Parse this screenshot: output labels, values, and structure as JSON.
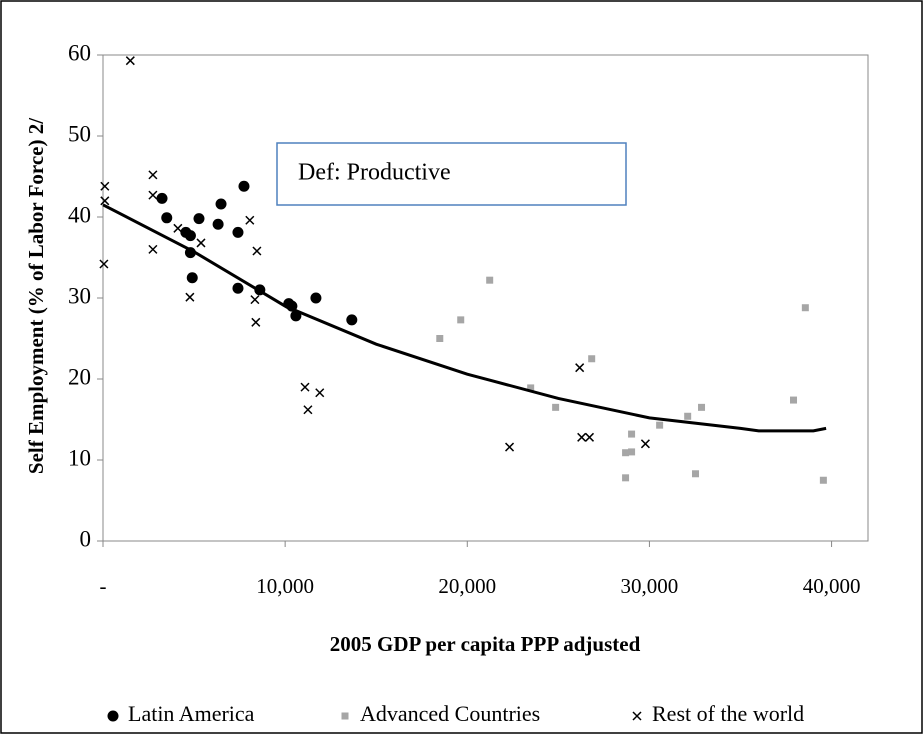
{
  "chart_data": {
    "type": "scatter",
    "xlabel": "2005 GDP per capita PPP adjusted",
    "ylabel": "Self Employment (% of Labor Force) 2/",
    "annotation": "Def: Productive",
    "xlim": [
      0,
      42000
    ],
    "xticks": [
      {
        "value": 0,
        "label": "-"
      },
      {
        "value": 10000,
        "label": "10,000"
      },
      {
        "value": 20000,
        "label": "20,000"
      },
      {
        "value": 30000,
        "label": "30,000"
      },
      {
        "value": 40000,
        "label": "40,000"
      }
    ],
    "ylim": [
      0,
      60
    ],
    "yticks": [
      0,
      10,
      20,
      30,
      40,
      50,
      60
    ],
    "legend": "bottom",
    "series": [
      {
        "name": "Latin America",
        "color": "#000000",
        "marker": "circle",
        "x": [
          3240,
          3500,
          4550,
          4800,
          4800,
          4900,
          5270,
          6320,
          6480,
          7410,
          7410,
          7740,
          8610,
          10200,
          10370,
          10590,
          11690,
          13660
        ],
        "values": [
          42.3,
          39.9,
          38.1,
          37.7,
          35.6,
          32.5,
          39.8,
          39.1,
          41.6,
          38.1,
          31.2,
          43.8,
          31.0,
          29.3,
          29.0,
          27.8,
          30.0,
          27.3
        ]
      },
      {
        "name": "Advanced Countries",
        "color": "#a6a6a6",
        "marker": "square",
        "x": [
          18490,
          19640,
          21230,
          23480,
          24850,
          26830,
          28690,
          28690,
          29020,
          29020,
          30560,
          32100,
          32530,
          32860,
          37910,
          38560,
          39550
        ],
        "values": [
          25.0,
          27.3,
          32.2,
          18.9,
          16.5,
          22.5,
          10.9,
          7.8,
          11.0,
          13.2,
          14.3,
          15.4,
          8.3,
          16.5,
          17.4,
          28.8,
          7.5
        ]
      },
      {
        "name": "Rest of the world",
        "color": "#000000",
        "marker": "x",
        "x": [
          100,
          100,
          50,
          1500,
          2740,
          2740,
          2740,
          4110,
          4770,
          5380,
          8060,
          8450,
          8340,
          8390,
          11090,
          11250,
          11900,
          22320,
          26170,
          26280,
          26710,
          29780
        ],
        "values": [
          43.8,
          42.0,
          34.2,
          59.3,
          45.2,
          42.7,
          36.0,
          38.6,
          30.1,
          36.8,
          39.6,
          35.8,
          29.8,
          27.0,
          19.0,
          16.2,
          18.3,
          11.6,
          21.4,
          12.8,
          12.8,
          12.0
        ]
      }
    ],
    "trend": {
      "color": "#000000",
      "x": [
        0,
        5000,
        10000,
        15000,
        20000,
        25000,
        30000,
        35000,
        36000,
        39000,
        39700
      ],
      "values": [
        41.5,
        35.7,
        29.0,
        24.3,
        20.6,
        17.6,
        15.2,
        13.9,
        13.6,
        13.6,
        13.9
      ]
    }
  }
}
